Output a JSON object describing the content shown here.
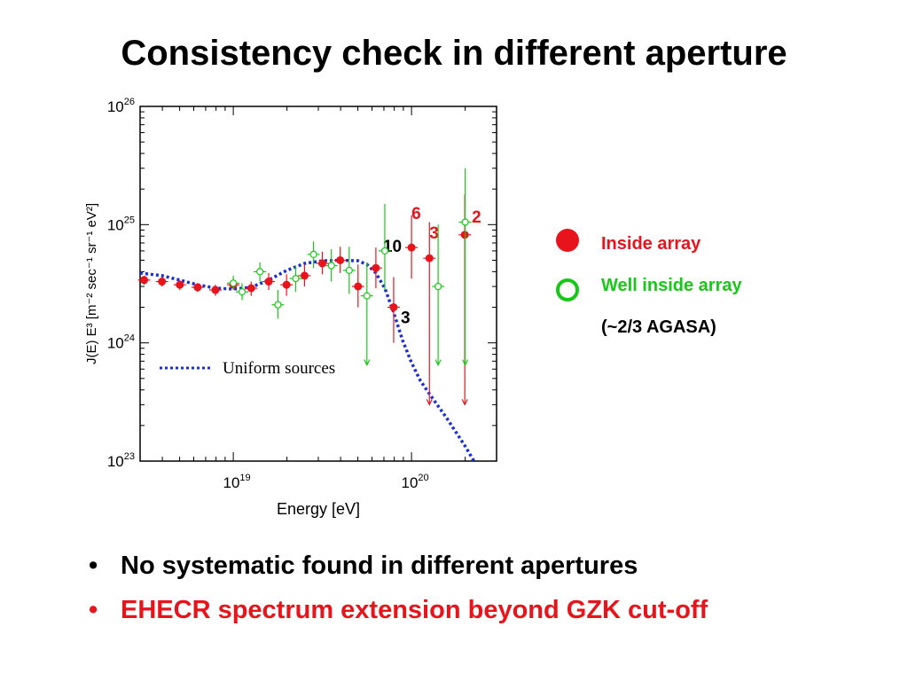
{
  "slide": {
    "title": "Consistency check in different aperture",
    "bullets": [
      {
        "text": "No systematic found in different apertures",
        "color": "#000000",
        "bullet": "•"
      },
      {
        "text": "EHECR spectrum extension beyond GZK cut-off",
        "color": "#e8141c",
        "bullet": "•"
      }
    ]
  },
  "legend": {
    "inside": {
      "label": "Inside array",
      "color": "#e8141c"
    },
    "well_inside": {
      "label": "Well inside array",
      "color": "#18c818"
    },
    "note": "(~2/3 AGASA)"
  },
  "chart_data": {
    "type": "scatter",
    "title": "",
    "xlabel": "Energy [eV]",
    "ylabel": "J(E) E³ [m⁻² sec⁻¹ sr⁻¹ eV²]",
    "xscale": "log",
    "yscale": "log",
    "xlim": [
      3e+18,
      3e+20
    ],
    "ylim": [
      1e+23,
      1e+26
    ],
    "x_ticks": [
      {
        "base": "10",
        "exp": "19",
        "value": 1e+19
      },
      {
        "base": "10",
        "exp": "20",
        "value": 1e+20
      }
    ],
    "y_ticks": [
      {
        "base": "10",
        "exp": "23",
        "value": 1e+23
      },
      {
        "base": "10",
        "exp": "24",
        "value": 1e+24
      },
      {
        "base": "10",
        "exp": "25",
        "value": 1e+25
      },
      {
        "base": "10",
        "exp": "26",
        "value": 1e+26
      }
    ],
    "series": [
      {
        "name": "Inside array",
        "color": "#e8141c",
        "marker": "filled-circle",
        "points": [
          {
            "x": 3.16e+18,
            "y": 3.4e+24,
            "lo": 3.1e+24,
            "hi": 3.7e+24
          },
          {
            "x": 3.98e+18,
            "y": 3.3e+24,
            "lo": 3e+24,
            "hi": 3.6e+24
          },
          {
            "x": 5.01e+18,
            "y": 3.1e+24,
            "lo": 2.8e+24,
            "hi": 3.4e+24
          },
          {
            "x": 6.31e+18,
            "y": 2.95e+24,
            "lo": 2.7e+24,
            "hi": 3.2e+24
          },
          {
            "x": 7.94e+18,
            "y": 2.8e+24,
            "lo": 2.5e+24,
            "hi": 3.1e+24
          },
          {
            "x": 1e+19,
            "y": 3.1e+24,
            "lo": 2.8e+24,
            "hi": 3.5e+24
          },
          {
            "x": 1.26e+19,
            "y": 2.9e+24,
            "lo": 2.5e+24,
            "hi": 3.3e+24
          },
          {
            "x": 1.58e+19,
            "y": 3.3e+24,
            "lo": 2.8e+24,
            "hi": 3.9e+24
          },
          {
            "x": 1.99e+19,
            "y": 3.1e+24,
            "lo": 2.5e+24,
            "hi": 3.8e+24
          },
          {
            "x": 2.51e+19,
            "y": 3.7e+24,
            "lo": 3e+24,
            "hi": 4.6e+24
          },
          {
            "x": 3.16e+19,
            "y": 4.7e+24,
            "lo": 3.8e+24,
            "hi": 5.9e+24
          },
          {
            "x": 3.98e+19,
            "y": 5e+24,
            "lo": 3.9e+24,
            "hi": 6.5e+24
          },
          {
            "x": 5.01e+19,
            "y": 3e+24,
            "lo": 2e+24,
            "hi": 4.6e+24,
            "label": ""
          },
          {
            "x": 6.31e+19,
            "y": 4.3e+24,
            "lo": 2.9e+24,
            "hi": 6.4e+24,
            "label": "10"
          },
          {
            "x": 7.94e+19,
            "y": 2e+24,
            "lo": 1e+24,
            "hi": 3.6e+24,
            "label": "3"
          },
          {
            "x": 1e+20,
            "y": 6.4e+24,
            "lo": 3.5e+24,
            "hi": 1.2e+25,
            "label": "6"
          },
          {
            "x": 1.26e+20,
            "y": 5.2e+24,
            "lo": 2.6e+24,
            "hi": 1.05e+25,
            "label": "3",
            "upper_limit": 3e+23
          },
          {
            "x": 1.99e+20,
            "y": 8.2e+24,
            "lo": 4e+24,
            "hi": 1.8e+25,
            "label": "2",
            "upper_limit": 3e+23
          }
        ]
      },
      {
        "name": "Well inside array",
        "color": "#18c818",
        "marker": "open-circle",
        "points": [
          {
            "x": 1e+19,
            "y": 3.2e+24,
            "lo": 2.8e+24,
            "hi": 3.7e+24
          },
          {
            "x": 1.12e+19,
            "y": 2.7e+24,
            "lo": 2.3e+24,
            "hi": 3.2e+24
          },
          {
            "x": 1.41e+19,
            "y": 4e+24,
            "lo": 3.3e+24,
            "hi": 4.8e+24
          },
          {
            "x": 1.78e+19,
            "y": 2.1e+24,
            "lo": 1.6e+24,
            "hi": 2.8e+24
          },
          {
            "x": 2.24e+19,
            "y": 3.5e+24,
            "lo": 2.7e+24,
            "hi": 4.5e+24
          },
          {
            "x": 2.82e+19,
            "y": 5.6e+24,
            "lo": 4.3e+24,
            "hi": 7.2e+24
          },
          {
            "x": 3.55e+19,
            "y": 4.5e+24,
            "lo": 3.3e+24,
            "hi": 6.2e+24
          },
          {
            "x": 4.47e+19,
            "y": 4.1e+24,
            "lo": 2.6e+24,
            "hi": 6.5e+24
          },
          {
            "x": 5.62e+19,
            "y": 2.5e+24,
            "lo": 1.2e+24,
            "hi": 4.8e+24,
            "upper_limit": 6.5e+23
          },
          {
            "x": 7.08e+19,
            "y": 6e+24,
            "lo": 2.8e+24,
            "hi": 1.5e+25
          },
          {
            "x": 1.41e+20,
            "y": 3e+24,
            "lo": 1.4e+24,
            "hi": 1e+25,
            "upper_limit": 6.5e+23
          },
          {
            "x": 2e+20,
            "y": 1.05e+25,
            "lo": 4e+24,
            "hi": 3e+25,
            "upper_limit": 6.5e+23
          }
        ]
      }
    ],
    "model": {
      "name": "Uniform sources",
      "color": "#1a2fd6",
      "style": "dotted",
      "x": [
        3e+18,
        4e+18,
        5e+18,
        6.3e+18,
        8e+18,
        1e+19,
        1.26e+19,
        1.58e+19,
        1.99e+19,
        2.51e+19,
        3.16e+19,
        3.98e+19,
        5.01e+19,
        5.62e+19,
        6.31e+19,
        7.08e+19,
        7.94e+19,
        8.91e+19,
        1e+20,
        1.12e+20,
        1.26e+20,
        1.58e+20,
        1.99e+20,
        2.24e+20
      ],
      "y": [
        3.9e+24,
        3.7e+24,
        3.4e+24,
        3.1e+24,
        2.9e+24,
        2.85e+24,
        2.95e+24,
        3.4e+24,
        4.1e+24,
        4.7e+24,
        4.95e+24,
        5e+24,
        4.95e+24,
        4.6e+24,
        3.9e+24,
        2.9e+24,
        1.8e+24,
        1.05e+24,
        6.8e+23,
        4.8e+23,
        3.7e+23,
        2.3e+23,
        1.35e+23,
        1e+23
      ]
    }
  }
}
